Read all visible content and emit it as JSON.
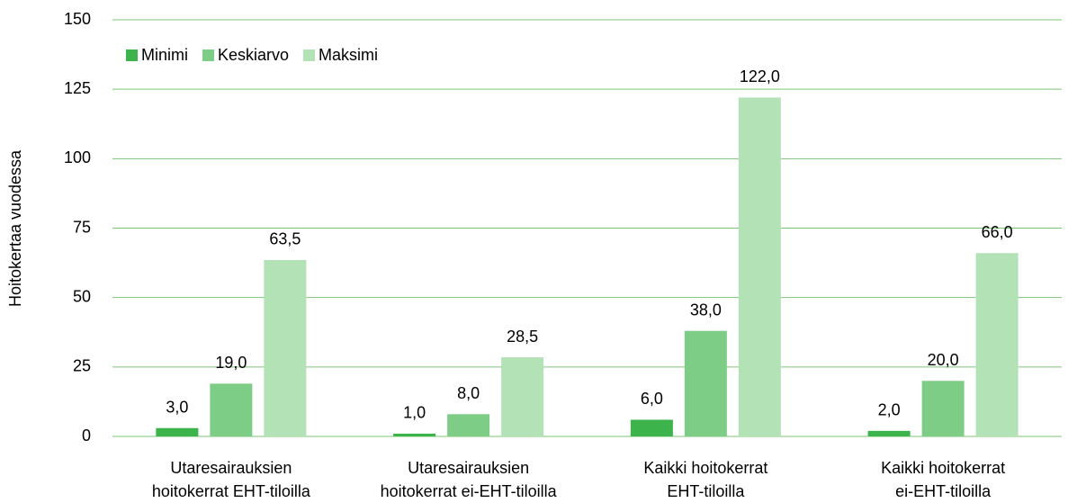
{
  "chart_data": {
    "type": "bar",
    "y_label": "Hoitokertaa vuodessa",
    "categories": [
      [
        "Utaresairauksien",
        "hoitokerrat EHT-tiloilla"
      ],
      [
        "Utaresairauksien",
        "hoitokerrat ei-EHT-tiloilla"
      ],
      [
        "Kaikki hoitokerrat",
        "EHT-tiloilla"
      ],
      [
        "Kaikki hoitokerrat",
        "ei-EHT-tiloilla"
      ]
    ],
    "series": [
      {
        "name": "Minimi",
        "color": "#3cb44b",
        "values": [
          3,
          1,
          6,
          2
        ],
        "value_labels": [
          "3,0",
          "1,0",
          "6,0",
          "2,0"
        ]
      },
      {
        "name": "Keskiarvo",
        "color": "#7ecd86",
        "values": [
          19,
          8,
          38,
          20
        ],
        "value_labels": [
          "19,0",
          "8,0",
          "38,0",
          "20,0"
        ]
      },
      {
        "name": "Maksimi",
        "color": "#b3e2b6",
        "values": [
          63.5,
          28.5,
          122,
          66
        ],
        "value_labels": [
          "63,5",
          "28,5",
          "122,0",
          "66,0"
        ]
      }
    ],
    "ylim": [
      0,
      150
    ],
    "yticks": [
      0,
      25,
      50,
      75,
      100,
      125,
      150
    ],
    "grid": true,
    "grid_color": "#7cc576",
    "legend": "top-left"
  }
}
